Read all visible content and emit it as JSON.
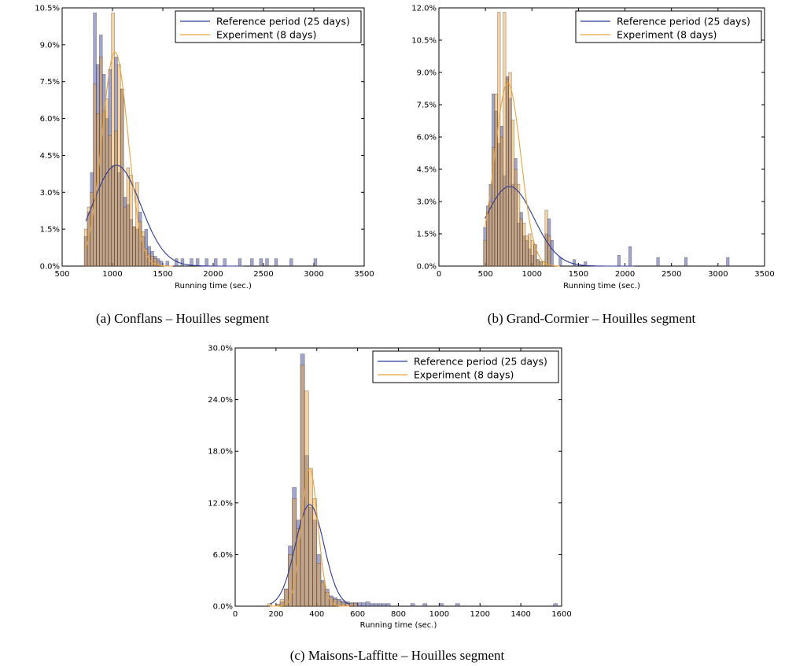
{
  "chart_data": [
    {
      "type": "histogram",
      "caption": "(a) Conflans – Houilles segment",
      "xlabel": "Running time (sec.)",
      "xlim": [
        500,
        3500
      ],
      "xticks": [
        "500",
        "1000",
        "1500",
        "2000",
        "2500",
        "3000",
        "3500"
      ],
      "ylim": [
        0,
        0.105
      ],
      "yticks": [
        "0.0%",
        "1.5%",
        "3.0%",
        "4.5%",
        "6.0%",
        "7.5%",
        "9.0%",
        "10.5%"
      ],
      "legend": {
        "position": "upper-right",
        "entries": [
          "Reference period (25 days)",
          "Experiment (8 days)"
        ]
      },
      "colors": {
        "reference": "#2c3a96",
        "experiment": "#e9a23b"
      },
      "bin_width": 30,
      "series": [
        {
          "name": "Reference period (25 days)",
          "bins": [
            [
              735,
              0.012
            ],
            [
              765,
              0.022
            ],
            [
              795,
              0.038
            ],
            [
              825,
              0.103
            ],
            [
              855,
              0.082
            ],
            [
              885,
              0.094
            ],
            [
              915,
              0.078
            ],
            [
              945,
              0.06
            ],
            [
              975,
              0.08
            ],
            [
              1005,
              0.041
            ],
            [
              1035,
              0.085
            ],
            [
              1065,
              0.038
            ],
            [
              1095,
              0.072
            ],
            [
              1125,
              0.028
            ],
            [
              1155,
              0.025
            ],
            [
              1185,
              0.019
            ],
            [
              1215,
              0.016
            ],
            [
              1245,
              0.015
            ],
            [
              1275,
              0.022
            ],
            [
              1305,
              0.012
            ],
            [
              1335,
              0.015
            ],
            [
              1365,
              0.008
            ],
            [
              1395,
              0.006
            ],
            [
              1425,
              0.004
            ],
            [
              1455,
              0.003
            ],
            [
              1485,
              0.002
            ],
            [
              1545,
              0.002
            ],
            [
              1635,
              0.003
            ],
            [
              1695,
              0.003
            ],
            [
              1785,
              0.003
            ],
            [
              1845,
              0.003
            ],
            [
              1935,
              0.003
            ],
            [
              2025,
              0.003
            ],
            [
              2115,
              0.003
            ],
            [
              2265,
              0.003
            ],
            [
              2385,
              0.003
            ],
            [
              2475,
              0.003
            ],
            [
              2535,
              0.003
            ],
            [
              2625,
              0.003
            ],
            [
              2775,
              0.003
            ],
            [
              3015,
              0.003
            ]
          ],
          "fit": {
            "mean": 1040,
            "sd": 240,
            "peak": 0.041,
            "x": [
              735,
              2300
            ]
          }
        },
        {
          "name": "Experiment (8 days)",
          "bins": [
            [
              735,
              0.015
            ],
            [
              765,
              0.024
            ],
            [
              795,
              0.03
            ],
            [
              825,
              0.074
            ],
            [
              855,
              0.062
            ],
            [
              885,
              0.085
            ],
            [
              915,
              0.063
            ],
            [
              945,
              0.068
            ],
            [
              975,
              0.053
            ],
            [
              1005,
              0.103
            ],
            [
              1035,
              0.055
            ],
            [
              1065,
              0.082
            ],
            [
              1095,
              0.072
            ],
            [
              1125,
              0.024
            ],
            [
              1155,
              0.04
            ],
            [
              1185,
              0.037
            ],
            [
              1215,
              0.016
            ],
            [
              1245,
              0.034
            ],
            [
              1275,
              0.018
            ],
            [
              1305,
              0.014
            ],
            [
              1335,
              0.007
            ],
            [
              1365,
              0.005
            ],
            [
              1395,
              0.004
            ],
            [
              1425,
              0.003
            ],
            [
              1455,
              0.002
            ]
          ],
          "fit": {
            "mean": 1025,
            "sd": 130,
            "peak": 0.087,
            "x": [
              735,
              1600
            ]
          }
        }
      ]
    },
    {
      "type": "histogram",
      "caption": "(b) Grand-Cormier – Houilles segment",
      "xlabel": "Running time (sec.)",
      "xlim": [
        0,
        3500
      ],
      "xticks": [
        "0",
        "500",
        "1000",
        "1500",
        "2000",
        "2500",
        "3000",
        "3500"
      ],
      "ylim": [
        0,
        0.12
      ],
      "yticks": [
        "0.0%",
        "1.5%",
        "3.0%",
        "4.5%",
        "6.0%",
        "7.5%",
        "9.0%",
        "10.5%",
        "12.0%"
      ],
      "legend": {
        "position": "upper-right",
        "entries": [
          "Reference period (25 days)",
          "Experiment (8 days)"
        ]
      },
      "colors": {
        "reference": "#2c3a96",
        "experiment": "#e9a23b"
      },
      "bin_width": 30,
      "series": [
        {
          "name": "Reference period (25 days)",
          "bins": [
            [
              495,
              0.018
            ],
            [
              525,
              0.028
            ],
            [
              555,
              0.038
            ],
            [
              585,
              0.08
            ],
            [
              615,
              0.072
            ],
            [
              645,
              0.057
            ],
            [
              675,
              0.065
            ],
            [
              705,
              0.042
            ],
            [
              735,
              0.088
            ],
            [
              765,
              0.078
            ],
            [
              795,
              0.038
            ],
            [
              825,
              0.05
            ],
            [
              855,
              0.02
            ],
            [
              885,
              0.025
            ],
            [
              915,
              0.014
            ],
            [
              945,
              0.012
            ],
            [
              975,
              0.008
            ],
            [
              1005,
              0.005
            ],
            [
              1035,
              0.01
            ],
            [
              1065,
              0.003
            ],
            [
              1095,
              0.002
            ],
            [
              1155,
              0.015
            ],
            [
              1185,
              0.022
            ],
            [
              1215,
              0.012
            ],
            [
              1305,
              0.004
            ],
            [
              1455,
              0.003
            ],
            [
              1575,
              0.002
            ],
            [
              1935,
              0.005
            ],
            [
              2055,
              0.009
            ],
            [
              2355,
              0.004
            ],
            [
              2655,
              0.004
            ],
            [
              3105,
              0.004
            ]
          ],
          "fit": {
            "mean": 760,
            "sd": 260,
            "peak": 0.037,
            "x": [
              495,
              2100
            ]
          }
        },
        {
          "name": "Experiment (8 days)",
          "bins": [
            [
              495,
              0.012
            ],
            [
              525,
              0.025
            ],
            [
              555,
              0.03
            ],
            [
              585,
              0.055
            ],
            [
              615,
              0.08
            ],
            [
              645,
              0.118
            ],
            [
              675,
              0.06
            ],
            [
              705,
              0.118
            ],
            [
              735,
              0.087
            ],
            [
              765,
              0.09
            ],
            [
              795,
              0.068
            ],
            [
              825,
              0.045
            ],
            [
              855,
              0.038
            ],
            [
              885,
              0.022
            ],
            [
              915,
              0.02
            ],
            [
              945,
              0.014
            ],
            [
              975,
              0.015
            ],
            [
              1005,
              0.012
            ],
            [
              1035,
              0.01
            ],
            [
              1065,
              0.003
            ],
            [
              1095,
              0.002
            ],
            [
              1125,
              0.002
            ],
            [
              1155,
              0.026
            ],
            [
              1185,
              0.014
            ]
          ],
          "fit": {
            "mean": 740,
            "sd": 140,
            "peak": 0.085,
            "x": [
              495,
              1300
            ]
          }
        }
      ]
    },
    {
      "type": "histogram",
      "caption": "(c) Maisons-Laffitte – Houilles segment",
      "xlabel": "Running time (sec.)",
      "xlim": [
        0,
        1600
      ],
      "xticks": [
        "0",
        "200",
        "400",
        "600",
        "800",
        "1000",
        "1200",
        "1400",
        "1600"
      ],
      "ylim": [
        0,
        0.3
      ],
      "yticks": [
        "0.0%",
        "6.0%",
        "12.0%",
        "18.0%",
        "24.0%",
        "30.0%"
      ],
      "legend": {
        "position": "upper-right",
        "entries": [
          "Reference period (25 days)",
          "Experiment (8 days)"
        ]
      },
      "colors": {
        "reference": "#2c3a96",
        "experiment": "#e9a23b"
      },
      "bin_width": 20,
      "series": [
        {
          "name": "Reference period (25 days)",
          "bins": [
            [
              210,
              0.002
            ],
            [
              230,
              0.005
            ],
            [
              250,
              0.02
            ],
            [
              270,
              0.07
            ],
            [
              290,
              0.138
            ],
            [
              310,
              0.1
            ],
            [
              330,
              0.293
            ],
            [
              350,
              0.175
            ],
            [
              370,
              0.115
            ],
            [
              390,
              0.1
            ],
            [
              410,
              0.06
            ],
            [
              430,
              0.03
            ],
            [
              450,
              0.02
            ],
            [
              470,
              0.012
            ],
            [
              490,
              0.01
            ],
            [
              510,
              0.008
            ],
            [
              530,
              0.006
            ],
            [
              550,
              0.005
            ],
            [
              570,
              0.004
            ],
            [
              590,
              0.004
            ],
            [
              610,
              0.004
            ],
            [
              630,
              0.004
            ],
            [
              650,
              0.005
            ],
            [
              670,
              0.003
            ],
            [
              690,
              0.003
            ],
            [
              710,
              0.003
            ],
            [
              730,
              0.003
            ],
            [
              750,
              0.003
            ],
            [
              870,
              0.003
            ],
            [
              930,
              0.003
            ],
            [
              1010,
              0.003
            ],
            [
              1090,
              0.003
            ],
            [
              1570,
              0.003
            ]
          ],
          "fit": {
            "mean": 365,
            "sd": 70,
            "peak": 0.118,
            "x": [
              170,
              560
            ]
          }
        },
        {
          "name": "Experiment (8 days)",
          "bins": [
            [
              170,
              0.003
            ],
            [
              210,
              0.002
            ],
            [
              230,
              0.008
            ],
            [
              250,
              0.02
            ],
            [
              270,
              0.06
            ],
            [
              290,
              0.125
            ],
            [
              310,
              0.09
            ],
            [
              330,
              0.28
            ],
            [
              350,
              0.25
            ],
            [
              370,
              0.16
            ],
            [
              390,
              0.125
            ],
            [
              410,
              0.05
            ],
            [
              430,
              0.028
            ],
            [
              450,
              0.016
            ],
            [
              470,
              0.01
            ],
            [
              490,
              0.008
            ],
            [
              510,
              0.006
            ],
            [
              530,
              0.004
            ],
            [
              550,
              0.003
            ],
            [
              570,
              0.003
            ],
            [
              590,
              0.003
            ]
          ],
          "fit": {
            "mean": 365,
            "sd": 40,
            "peak": 0.16,
            "x": [
              170,
              560
            ]
          }
        }
      ]
    }
  ]
}
